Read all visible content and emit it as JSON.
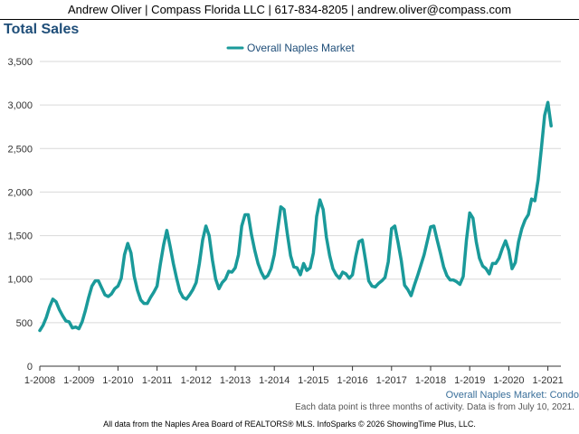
{
  "header": {
    "contact": "Andrew Oliver | Compass Florida LLC | 617-834-8205 | andrew.oliver@compass.com"
  },
  "page_title": "Total Sales",
  "subtitle_right": "Overall Naples Market: Condo",
  "notes": {
    "period": "Each data point is three months of activity. Data is from July 10, 2021.",
    "source": "All data from the Naples Area Board of REALTORS® MLS. InfoSparks © 2026 ShowingTime Plus, LLC."
  },
  "colors": {
    "series": "#1a9a9a",
    "title": "#1f4e79",
    "grid": "#d9d9d9",
    "axis": "#333333"
  },
  "chart_data": {
    "type": "line",
    "title": "Total Sales",
    "legend_position": "top-center",
    "grid": true,
    "ylim": [
      0,
      3500
    ],
    "y_ticks": [
      "0",
      "500",
      "1,000",
      "1,500",
      "2,000",
      "2,500",
      "3,000",
      "3,500"
    ],
    "x_ticks": [
      "1-2008",
      "1-2009",
      "1-2010",
      "1-2011",
      "1-2012",
      "1-2013",
      "1-2014",
      "1-2015",
      "1-2016",
      "1-2017",
      "1-2018",
      "1-2019",
      "1-2020",
      "1-2021"
    ],
    "x_start": "1-2008",
    "series": [
      {
        "name": "Overall Naples Market",
        "values": [
          410,
          470,
          560,
          680,
          770,
          740,
          650,
          580,
          520,
          510,
          440,
          450,
          430,
          510,
          640,
          790,
          920,
          980,
          980,
          900,
          820,
          800,
          830,
          890,
          920,
          1010,
          1280,
          1410,
          1300,
          1030,
          870,
          760,
          720,
          720,
          790,
          850,
          920,
          1170,
          1390,
          1560,
          1380,
          1180,
          1010,
          860,
          790,
          770,
          820,
          880,
          960,
          1180,
          1450,
          1610,
          1500,
          1220,
          1000,
          890,
          960,
          1000,
          1090,
          1080,
          1130,
          1280,
          1610,
          1740,
          1740,
          1510,
          1330,
          1180,
          1080,
          1010,
          1040,
          1120,
          1280,
          1560,
          1830,
          1800,
          1520,
          1270,
          1140,
          1130,
          1050,
          1180,
          1100,
          1130,
          1300,
          1720,
          1910,
          1800,
          1480,
          1270,
          1120,
          1050,
          1010,
          1080,
          1060,
          1010,
          1050,
          1260,
          1430,
          1450,
          1220,
          980,
          920,
          910,
          950,
          980,
          1020,
          1200,
          1580,
          1610,
          1420,
          1210,
          930,
          880,
          810,
          930,
          1040,
          1160,
          1280,
          1440,
          1600,
          1610,
          1450,
          1300,
          1140,
          1040,
          990,
          990,
          970,
          940,
          1030,
          1450,
          1760,
          1700,
          1430,
          1240,
          1150,
          1120,
          1060,
          1180,
          1180,
          1240,
          1350,
          1440,
          1330,
          1120,
          1190,
          1430,
          1580,
          1680,
          1740,
          1920,
          1900,
          2140,
          2500,
          2880,
          3030,
          2760
        ]
      }
    ]
  }
}
